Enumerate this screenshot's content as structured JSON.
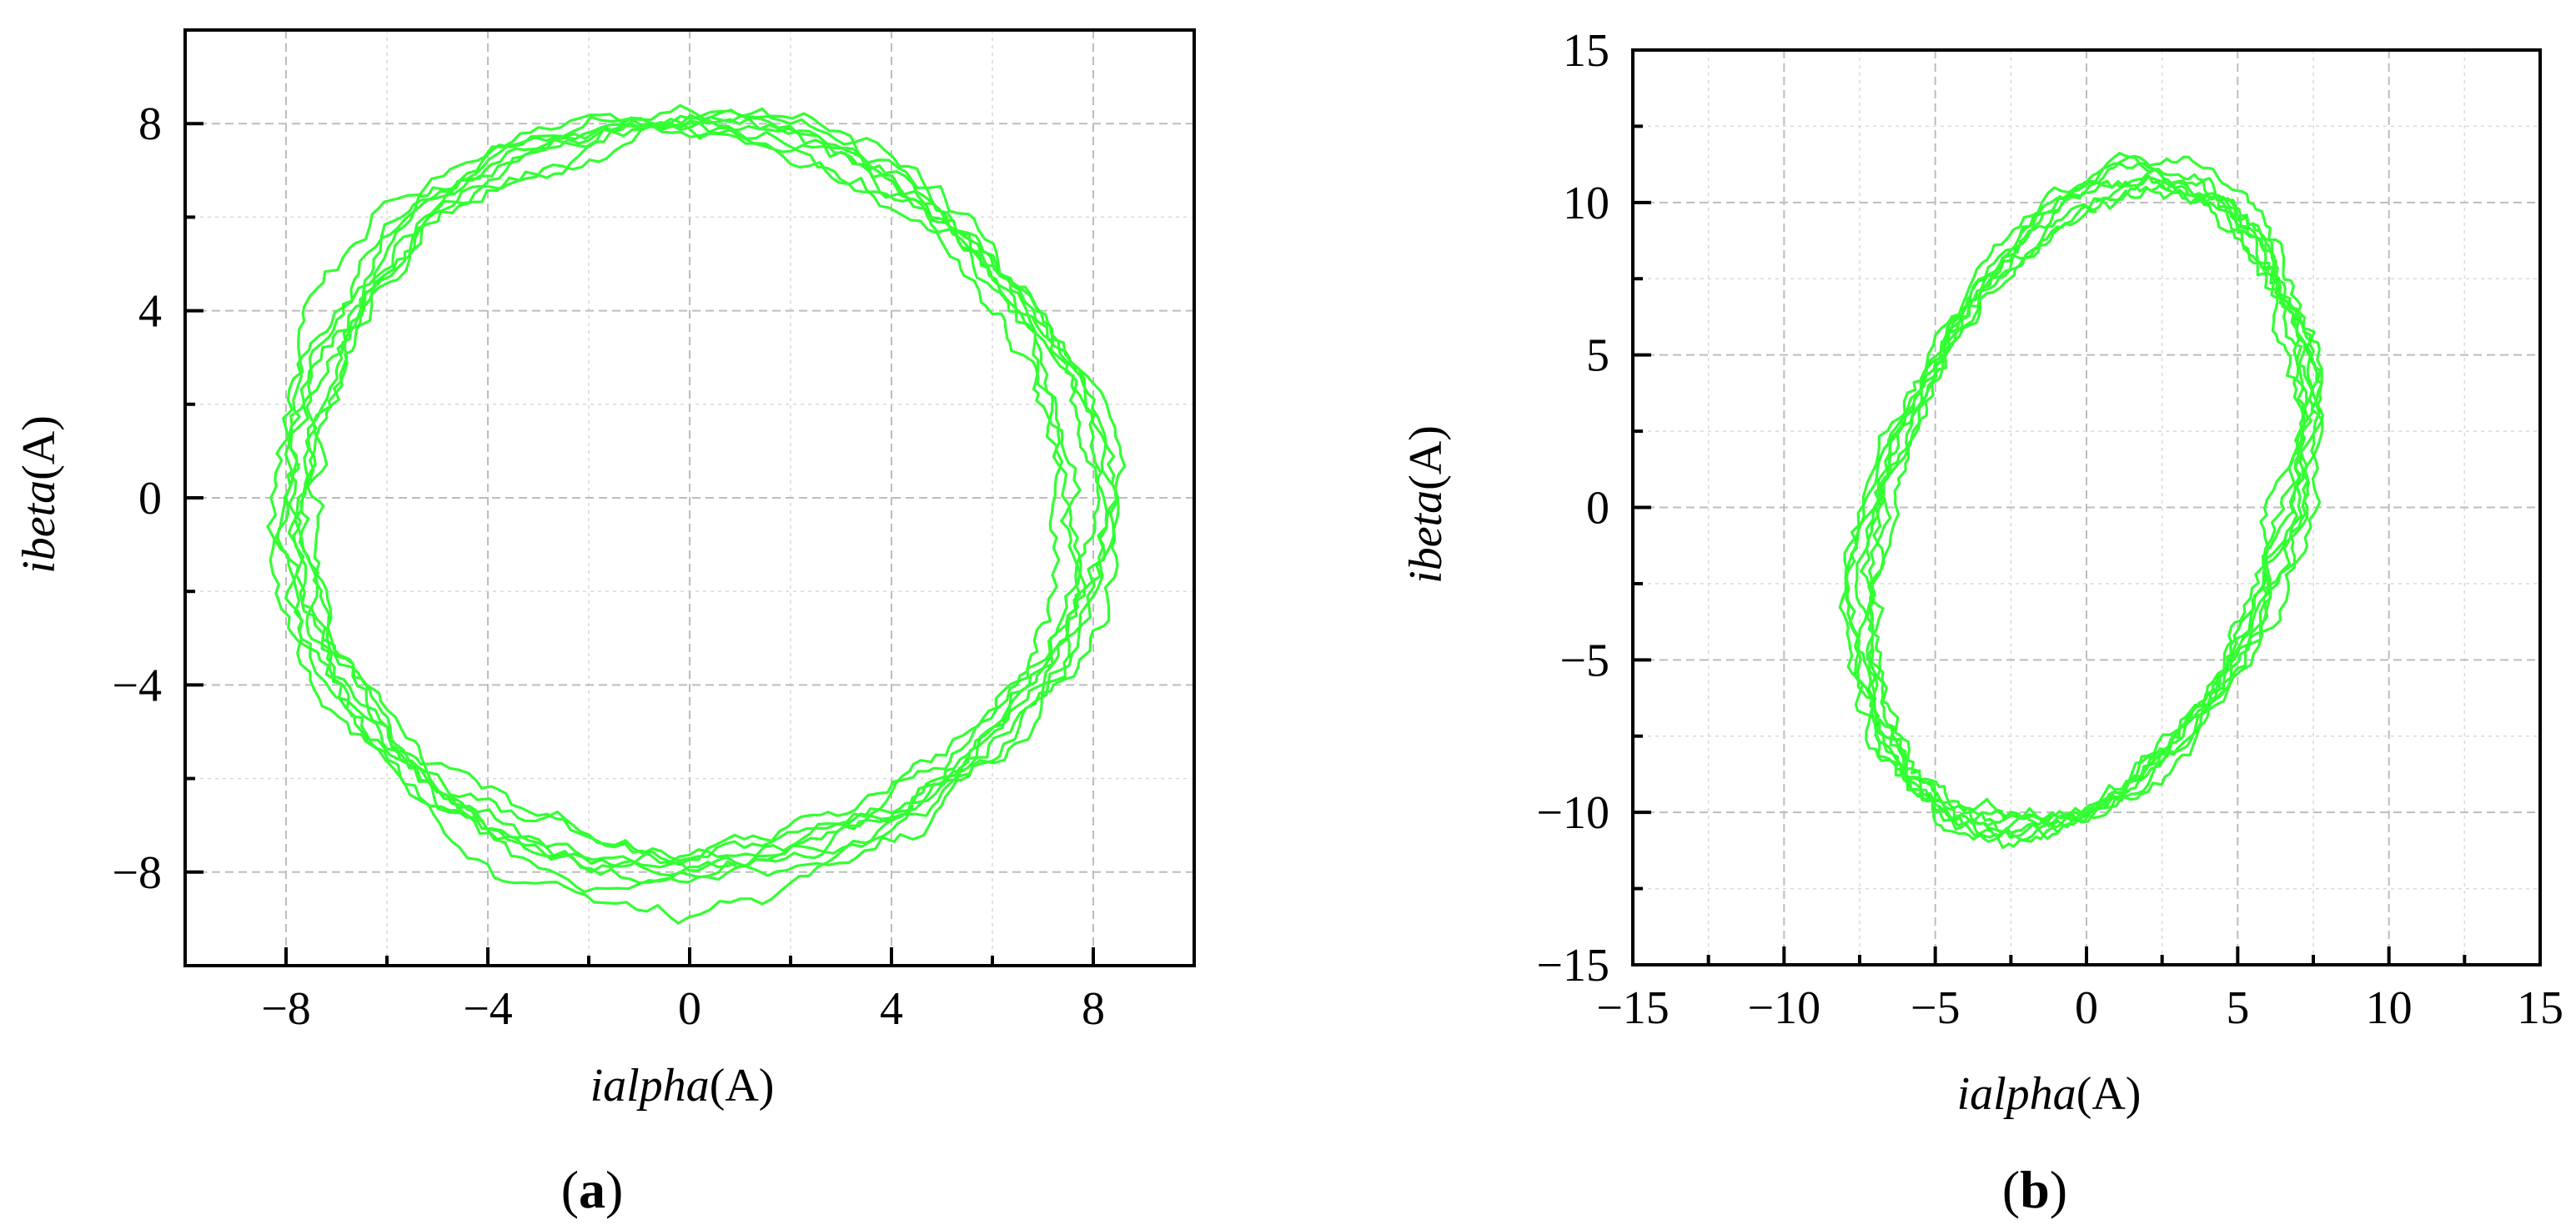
{
  "chart_data": [
    {
      "type": "line",
      "panel_label": "a",
      "xlabel_italic": "ialpha",
      "xlabel_unit": "(A)",
      "ylabel_italic": "ibeta",
      "ylabel_unit": "(A)",
      "xlim": [
        -10,
        10
      ],
      "ylim": [
        -10,
        10
      ],
      "xticks": [
        -8,
        -4,
        0,
        4,
        8
      ],
      "yticks": [
        -8,
        -4,
        0,
        4,
        8
      ],
      "minor_step": 2,
      "grid": true,
      "line_color": "#33ff33",
      "series": [
        {
          "name": "trajectory",
          "shape": "ellipse",
          "cx": 0,
          "cy": 0,
          "rx": 7.9,
          "ry": 7.9,
          "tilt_deg": 0,
          "loops": 8,
          "noise": 0.32,
          "start": [
            -7.1,
            0.7
          ]
        }
      ]
    },
    {
      "type": "line",
      "panel_label": "b",
      "xlabel_italic": "ialpha",
      "xlabel_unit": "(A)",
      "ylabel_italic": "ibeta",
      "ylabel_unit": "(A)",
      "xlim": [
        -15,
        15
      ],
      "ylim": [
        -15,
        15
      ],
      "xticks": [
        -15,
        -10,
        -5,
        0,
        5,
        10,
        15
      ],
      "yticks": [
        -15,
        -10,
        -5,
        0,
        5,
        10,
        15
      ],
      "minor_step": 2.5,
      "grid": true,
      "line_color": "#33ff33",
      "series": [
        {
          "name": "trajectory",
          "shape": "ellipse",
          "cx": 0,
          "cy": 0,
          "rx": 6.5,
          "ry": 11.0,
          "tilt_deg": -20,
          "loops": 8,
          "noise": 0.42,
          "start": [
            -2.5,
            7.5
          ]
        }
      ]
    }
  ]
}
